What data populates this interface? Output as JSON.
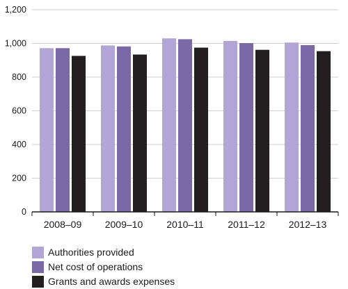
{
  "chart_data": {
    "type": "bar",
    "categories": [
      "2008–09",
      "2009–10",
      "2010–11",
      "2011–12",
      "2012–13"
    ],
    "series": [
      {
        "name": "Authorities provided",
        "color": "#b3a6d6",
        "values": [
          972,
          988,
          1030,
          1015,
          1005
        ]
      },
      {
        "name": "Net cost of operations",
        "color": "#7b68a6",
        "values": [
          972,
          982,
          1025,
          1002,
          990
        ]
      },
      {
        "name": "Grants and awards expenses",
        "color": "#231f20",
        "values": [
          926,
          934,
          975,
          962,
          954
        ]
      }
    ],
    "yticks": [
      "0",
      "200",
      "400",
      "600",
      "800",
      "1,000",
      "1,200"
    ],
    "ylim": [
      0,
      1200
    ],
    "grid": true,
    "legend_position": "bottom-left"
  }
}
